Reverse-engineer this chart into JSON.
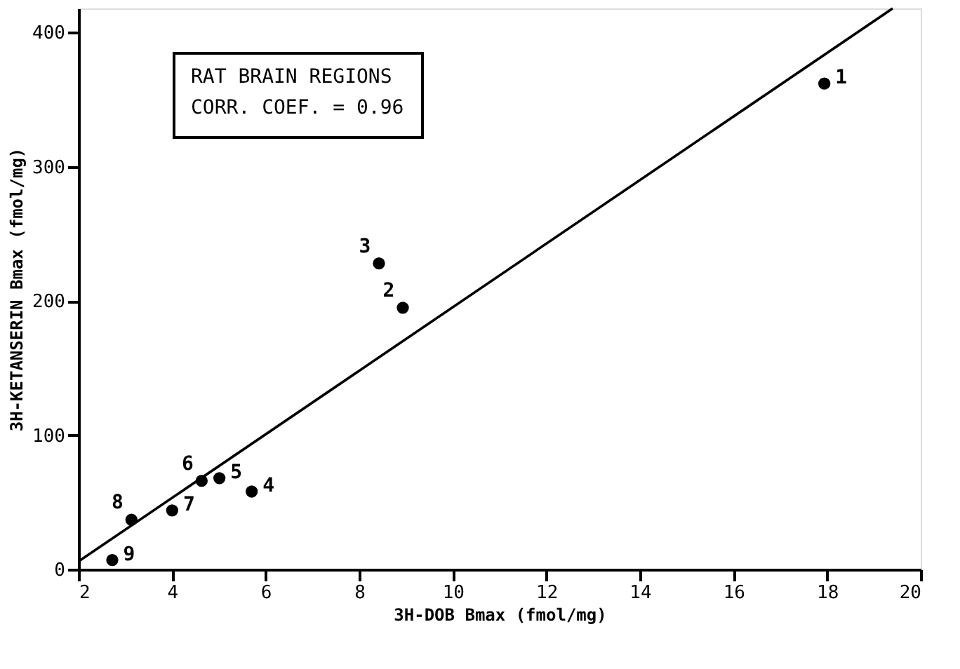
{
  "chart_data": {
    "type": "scatter",
    "xlabel": "3H-DOB Bmax  (fmol/mg)",
    "ylabel": "3H-KETANSERIN Bmax  (fmol/mg)",
    "xlim": [
      2,
      20
    ],
    "ylim": [
      0,
      418
    ],
    "xticks": [
      2,
      4,
      6,
      8,
      10,
      12,
      14,
      16,
      18,
      20
    ],
    "yticks": [
      0,
      100,
      200,
      300,
      400
    ],
    "grid": false,
    "series": [
      {
        "marker": "circle",
        "color": "#000000",
        "x": [
          17.94,
          8.93,
          8.42,
          5.7,
          5.01,
          4.63,
          4.0,
          3.13,
          2.72
        ],
        "values": [
          362,
          195,
          228,
          58,
          68,
          66,
          44,
          37,
          7
        ]
      },
      {
        "type": "line",
        "marker": "none",
        "color": "#000000",
        "x": [
          2,
          19.4
        ],
        "values": [
          6,
          418
        ]
      }
    ],
    "annotations": [
      "RAT BRAIN REGIONS",
      "CORR. COEF. = 0.96",
      {
        "text": "1",
        "x": 17.94,
        "y": 362
      },
      {
        "text": "2",
        "x": 8.93,
        "y": 195
      },
      {
        "text": "3",
        "x": 8.42,
        "y": 228
      },
      {
        "text": "4",
        "x": 5.7,
        "y": 58
      },
      {
        "text": "5",
        "x": 5.01,
        "y": 68
      },
      {
        "text": "6",
        "x": 4.63,
        "y": 66
      },
      {
        "text": "7",
        "x": 4.0,
        "y": 44
      },
      {
        "text": "8",
        "x": 3.13,
        "y": 37
      },
      {
        "text": "9",
        "x": 2.72,
        "y": 7
      }
    ]
  }
}
